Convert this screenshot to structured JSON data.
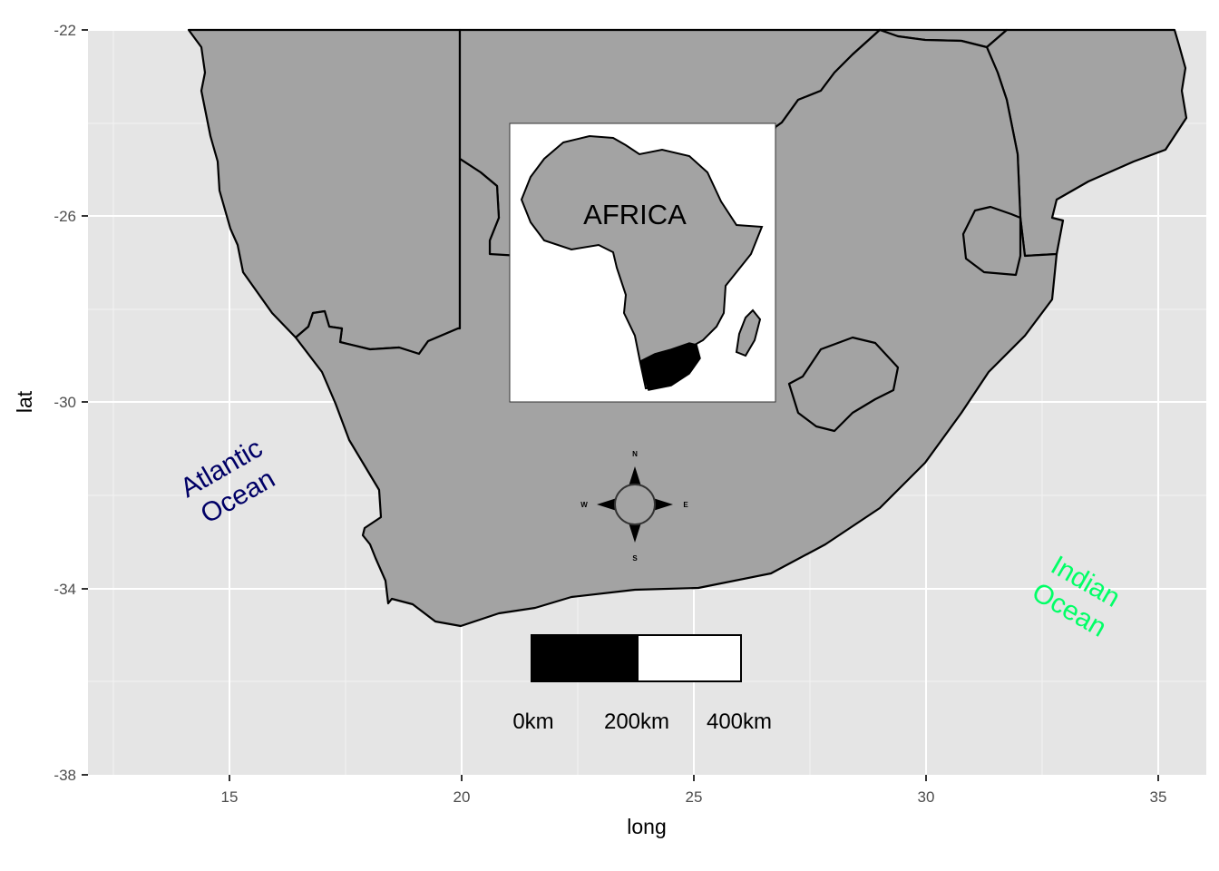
{
  "map": {
    "x_axis": {
      "title": "long",
      "ticks": [
        "15",
        "20",
        "25",
        "30",
        "35"
      ]
    },
    "y_axis": {
      "title": "lat",
      "ticks": [
        "-22",
        "-26",
        "-30",
        "-34",
        "-38"
      ]
    },
    "land_fill": "#a3a3a3",
    "panel_background": "#e5e5e5",
    "oceans": [
      {
        "lines": [
          "Atlantic",
          "Ocean"
        ],
        "color": "#000066"
      },
      {
        "lines": [
          "Indian",
          "Ocean"
        ],
        "color": "#00ff66"
      }
    ],
    "inset": {
      "label": "AFRICA",
      "highlight": "#000000"
    },
    "scale_bar": {
      "labels": [
        "0km",
        "200km",
        "400km"
      ]
    },
    "compass": {
      "n": "N",
      "s": "S",
      "e": "E",
      "w": "W",
      "icon": "compass-rose-icon"
    }
  }
}
